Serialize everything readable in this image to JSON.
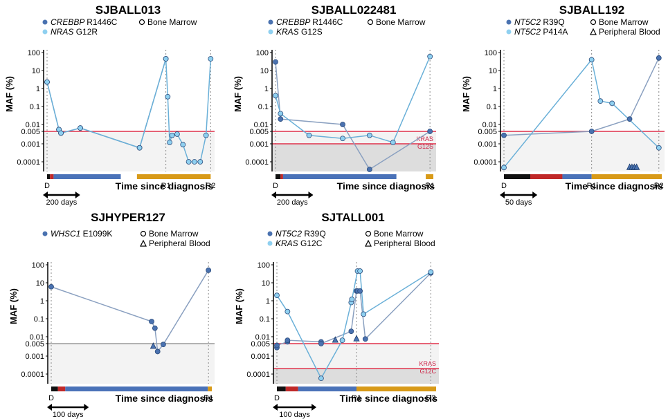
{
  "colors": {
    "dark_blue": "#4a72b0",
    "light_blue": "#8fd0f0",
    "line_dark": "#8aa0c0",
    "line_light": "#6ab0d8",
    "threshold_red": "#e0304a",
    "threshold_gray": "#9a9a9a",
    "black": "#111111",
    "red_bar": "#c02828",
    "blue_bar": "#4a72b8",
    "orange_bar": "#d89a18"
  },
  "common": {
    "y_label": "MAF (%)",
    "x_title": "Time since diagnosis",
    "y_ticks": [
      "100",
      "10",
      "1",
      "0.1",
      "0.01",
      "0.005",
      "0.001",
      "0.0001"
    ],
    "legend_circle": "Bone Marrow",
    "legend_triangle": "Peripheral Blood"
  },
  "chart_data": [
    {
      "type": "line",
      "title": "SJBALL013",
      "legend": [
        {
          "gene": "CREBBP",
          "mut": "R1446C",
          "color": "dark"
        },
        {
          "gene": "NRAS",
          "mut": "G12R",
          "color": "light"
        }
      ],
      "shape_legend": [
        "circle"
      ],
      "x_labels": [
        "D",
        "R1",
        "R2"
      ],
      "scale_bar": "200 days",
      "threshold": 0.005,
      "threshold_color": "red",
      "series": [
        {
          "name": "CREBBP R1446C",
          "color": "dark",
          "x": [
            0,
            82,
            96,
            230,
            640,
            822
          ],
          "y": [
            2.3,
            0.006,
            0.004,
            0.007,
            0.0006,
            45
          ]
        },
        {
          "name": "NRAS G12R",
          "color": "light",
          "x": [
            0,
            82,
            96,
            230,
            640,
            822,
            835,
            848,
            865,
            900,
            940,
            980,
            1020,
            1060,
            1100,
            1132
          ],
          "y": [
            2.3,
            0.006,
            0.004,
            0.007,
            0.0006,
            45,
            0.35,
            0.0012,
            0.003,
            0.0035,
            0.0009,
            0.0001,
            0.0001,
            0.0001,
            0.003,
            45
          ]
        }
      ]
    },
    {
      "type": "line",
      "title": "SJBALL022481",
      "legend": [
        {
          "gene": "CREBBP",
          "mut": "R1446C",
          "color": "dark"
        },
        {
          "gene": "KRAS",
          "mut": "G12S",
          "color": "light"
        }
      ],
      "shape_legend": [
        "circle"
      ],
      "x_labels": [
        "D",
        "R1"
      ],
      "scale_bar": "200 days",
      "threshold": 0.005,
      "threshold_color": "red",
      "threshold2": 0.001,
      "annotation": "KRAS G12S",
      "series": [
        {
          "name": "CREBBP R1446C",
          "color": "dark",
          "x": [
            0,
            30,
            400,
            560,
            920
          ],
          "y": [
            30,
            0.02,
            0.01,
            4e-05,
            0.005
          ]
        },
        {
          "name": "KRAS G12S",
          "color": "light",
          "x": [
            0,
            30,
            200,
            400,
            560,
            700,
            920
          ],
          "y": [
            0.4,
            0.04,
            0.003,
            0.002,
            0.003,
            0.0012,
            60
          ]
        }
      ]
    },
    {
      "type": "line",
      "title": "SJBALL192",
      "legend": [
        {
          "gene": "NT5C2",
          "mut": "R39Q",
          "color": "dark"
        },
        {
          "gene": "NT5C2",
          "mut": "P414A",
          "color": "light"
        }
      ],
      "shape_legend": [
        "circle",
        "triangle"
      ],
      "x_labels": [
        "D",
        "R1",
        "R2"
      ],
      "scale_bar": "50 days",
      "threshold": 0.005,
      "threshold_color": "red",
      "series": [
        {
          "name": "NT5C2 R39Q",
          "color": "dark",
          "x": [
            0,
            150,
            215,
            265
          ],
          "y": [
            0.003,
            0.005,
            0.02,
            50
          ]
        },
        {
          "name": "NT5C2 P414A",
          "color": "light",
          "x": [
            0,
            150,
            165,
            185,
            265
          ],
          "y": [
            5e-05,
            40,
            0.2,
            0.15,
            0.0006
          ]
        }
      ],
      "pb_points": [
        {
          "x": 215,
          "y": 5e-05
        },
        {
          "x": 219,
          "y": 5e-05
        },
        {
          "x": 223,
          "y": 5e-05
        },
        {
          "x": 227,
          "y": 5e-05
        }
      ]
    },
    {
      "type": "line",
      "title": "SJHYPER127",
      "legend": [
        {
          "gene": "WHSC1",
          "mut": "E1099K",
          "color": "dark"
        }
      ],
      "shape_legend": [
        "circle",
        "triangle"
      ],
      "x_labels": [
        "D",
        "R1"
      ],
      "scale_bar": "100 days",
      "threshold": 0.005,
      "threshold_color": "gray",
      "series": [
        {
          "name": "WHSC1 E1099K",
          "color": "dark",
          "x": [
            0,
            300,
            310,
            318,
            335,
            470
          ],
          "y": [
            6,
            0.07,
            0.03,
            0.0018,
            0.0045,
            50
          ]
        }
      ],
      "pb_points": [
        {
          "x": 305,
          "y": 0.0035
        }
      ]
    },
    {
      "type": "line",
      "title": "SJTALL001",
      "legend": [
        {
          "gene": "NT5C2",
          "mut": "R39Q",
          "color": "dark"
        },
        {
          "gene": "KRAS",
          "mut": "G12C",
          "color": "light"
        }
      ],
      "shape_legend": [
        "circle",
        "triangle"
      ],
      "x_labels": [
        "D",
        "R1",
        "R2"
      ],
      "scale_bar": "100 days",
      "threshold": 0.005,
      "threshold_color": "red",
      "threshold2": 0.0002,
      "annotation": "KRAS G12C",
      "series": [
        {
          "name": "NT5C2 R39Q",
          "color": "dark",
          "x": [
            0,
            0,
            30,
            30,
            125,
            125,
            210,
            225,
            228,
            235,
            250,
            435
          ],
          "y": [
            0.003,
            0.004,
            0.006,
            0.007,
            0.006,
            0.005,
            0.02,
            3.5,
            3.5,
            3.5,
            0.008,
            35
          ]
        },
        {
          "name": "KRAS G12C",
          "color": "light",
          "x": [
            0,
            30,
            125,
            185,
            210,
            212,
            228,
            235,
            245,
            435
          ],
          "y": [
            2,
            0.25,
            6e-05,
            0.007,
            0.8,
            1.2,
            45,
            45,
            0.18,
            40
          ]
        }
      ],
      "pb_points": [
        {
          "x": 165,
          "y": 0.007
        },
        {
          "x": 225,
          "y": 0.008
        }
      ]
    }
  ]
}
